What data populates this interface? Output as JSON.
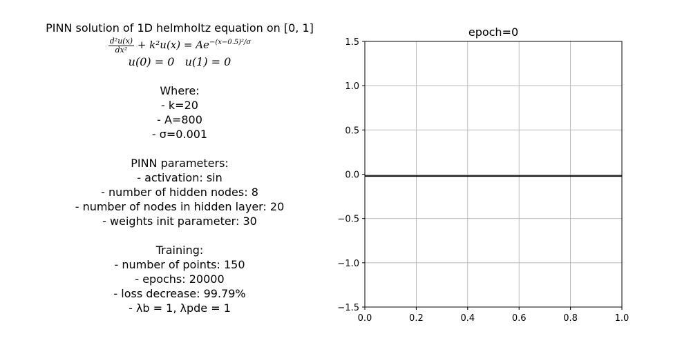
{
  "info": {
    "title": "PINN solution of 1D helmholtz equation on [0, 1]",
    "equation_lhs_numerator": "d²u(x)",
    "equation_lhs_denominator": "dx²",
    "equation_rest": " + k²u(x) = Ae",
    "equation_exponent": "−(x−0.5)²/σ",
    "boundary": "u(0) = 0   u(1) = 0",
    "where_header": "Where:",
    "where_items": [
      "- k=20",
      "- A=800",
      "- σ=0.001"
    ],
    "params_header": "PINN parameters:",
    "params_items": [
      "- activation: sin",
      "- number of hidden nodes: 8",
      "- number of nodes in hidden layer: 20",
      "- weights init parameter: 30"
    ],
    "training_header": "Training:",
    "training_items": [
      "- number of points: 150",
      "- epochs: 20000",
      "- loss decrease: 99.79%",
      "- λb = 1, λpde = 1"
    ]
  },
  "chart_data": {
    "type": "line",
    "title": "epoch=0",
    "xlabel": "",
    "ylabel": "",
    "xlim": [
      0.0,
      1.0
    ],
    "ylim": [
      -1.5,
      1.5
    ],
    "xticks": [
      "0.0",
      "0.2",
      "0.4",
      "0.6",
      "0.8",
      "1.0"
    ],
    "yticks": [
      "1.5",
      "1.0",
      "0.5",
      "0.0",
      "−0.5",
      "−1.0",
      "−1.5"
    ],
    "grid": true,
    "series": [
      {
        "x": [
          0.0,
          0.25,
          0.5,
          0.75,
          1.0
        ],
        "y": [
          -0.02,
          -0.02,
          -0.02,
          -0.02,
          -0.02
        ],
        "color": "#000000"
      }
    ]
  }
}
